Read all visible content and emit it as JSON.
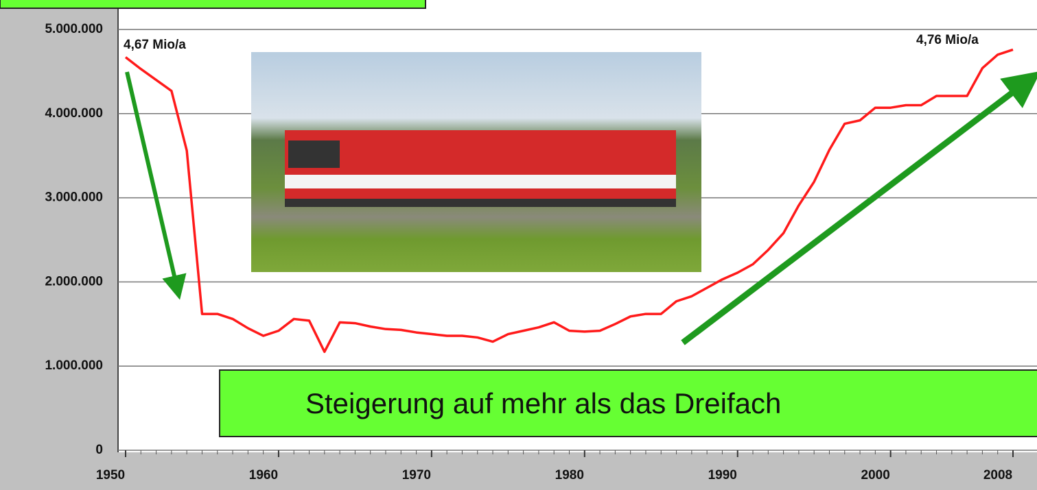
{
  "chart_data": {
    "type": "line",
    "x": [
      1950,
      1951,
      1952,
      1953,
      1954,
      1955,
      1956,
      1957,
      1958,
      1959,
      1960,
      1961,
      1962,
      1963,
      1964,
      1965,
      1966,
      1967,
      1968,
      1969,
      1970,
      1971,
      1972,
      1973,
      1974,
      1975,
      1976,
      1977,
      1978,
      1979,
      1980,
      1981,
      1982,
      1983,
      1984,
      1985,
      1986,
      1987,
      1988,
      1989,
      1990,
      1991,
      1992,
      1993,
      1994,
      1995,
      1996,
      1997,
      1998,
      1999,
      2000,
      2001,
      2002,
      2003,
      2004,
      2005,
      2006,
      2007,
      2008
    ],
    "series": [
      {
        "name": null,
        "color": "#ff1a1a",
        "values": [
          4670000,
          4530000,
          4400000,
          4270000,
          3560000,
          1620000,
          1620000,
          1560000,
          1450000,
          1360000,
          1420000,
          1560000,
          1540000,
          1170000,
          1520000,
          1510000,
          1470000,
          1440000,
          1430000,
          1400000,
          1380000,
          1360000,
          1360000,
          1340000,
          1290000,
          1380000,
          1420000,
          1460000,
          1520000,
          1420000,
          1410000,
          1420000,
          1500000,
          1590000,
          1620000,
          1620000,
          1770000,
          1830000,
          1930000,
          2030000,
          2110000,
          2210000,
          2380000,
          2580000,
          2910000,
          3190000,
          3570000,
          3880000,
          3920000,
          4070000,
          4070000,
          4100000,
          4100000,
          4210000,
          4210000,
          4210000,
          4540000,
          4700000,
          4760000
        ]
      }
    ],
    "xlim": [
      1950,
      2008
    ],
    "xticks": [
      1950,
      1960,
      1970,
      1980,
      1990,
      2000,
      2008
    ],
    "ylim": [
      0,
      5000000
    ],
    "yticks": [
      {
        "value": 0,
        "label": "0"
      },
      {
        "value": 1000000,
        "label": "1.000.000"
      },
      {
        "value": 2000000,
        "label": "2.000.000"
      },
      {
        "value": 3000000,
        "label": "3.000.000"
      },
      {
        "value": 4000000,
        "label": "4.000.000"
      },
      {
        "value": 5000000,
        "label": "5.000.000"
      }
    ],
    "grid": true,
    "annotations": [
      "4,67 Mio/a",
      "4,76 Mio/a",
      "Steigerung auf mehr als das Dreifach"
    ]
  }
}
